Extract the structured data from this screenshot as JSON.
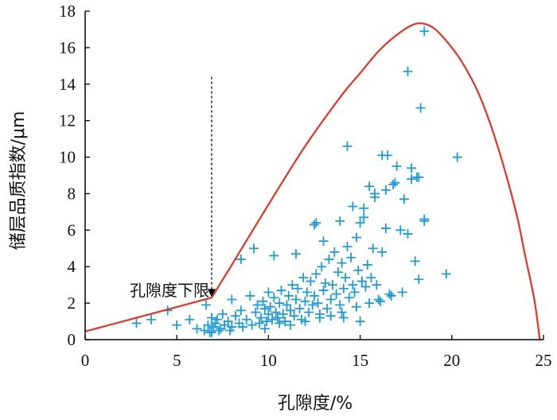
{
  "chart_data": {
    "type": "scatter",
    "xlabel": "孔隙度/%",
    "ylabel": "储层品质指数/μm",
    "xlim": [
      0,
      25
    ],
    "ylim": [
      0,
      18
    ],
    "x_ticks": [
      0,
      5,
      10,
      15,
      20,
      25
    ],
    "y_ticks": [
      0,
      2,
      4,
      6,
      8,
      10,
      12,
      14,
      16,
      18
    ],
    "grid": false,
    "legend": "none",
    "marker": "plus",
    "colors": {
      "points": "#1f9bd7",
      "envelope": "#e53323",
      "axis": "#000000",
      "arrow": "#000000"
    },
    "annotation": {
      "text": "孔隙度下限",
      "x": 6.9,
      "y": 2.3,
      "arrow_from_y": 14.4
    },
    "envelope": {
      "x": [
        0,
        6.9,
        8,
        10,
        12,
        14,
        15,
        16,
        17,
        18,
        18.8,
        19.5,
        20.5,
        21.5,
        22.5,
        23.5,
        24,
        24.5,
        24.8
      ],
      "y": [
        0.45,
        2.3,
        4.1,
        7.4,
        10.6,
        13.4,
        14.6,
        15.8,
        16.7,
        17.3,
        17.2,
        16.6,
        15.3,
        13.4,
        10.6,
        7.0,
        4.6,
        2.2,
        0
      ]
    },
    "points": {
      "x": [
        2.8,
        3.6,
        4.5,
        5.0,
        5.7,
        6.1,
        6.5,
        6.6,
        6.7,
        6.8,
        6.9,
        7.0,
        7.1,
        7.2,
        7.4,
        7.5,
        7.6,
        7.8,
        7.9,
        8.0,
        8.2,
        8.4,
        8.5,
        8.6,
        8.8,
        9.0,
        9.1,
        9.3,
        9.4,
        9.5,
        9.6,
        9.7,
        9.8,
        9.9,
        10.0,
        10.0,
        10.1,
        10.2,
        10.3,
        10.4,
        10.5,
        10.6,
        10.7,
        10.8,
        10.9,
        11.0,
        11.1,
        11.2,
        11.3,
        11.4,
        11.5,
        11.6,
        11.7,
        11.8,
        11.9,
        12.0,
        12.1,
        12.2,
        12.3,
        12.4,
        12.5,
        12.6,
        12.7,
        12.8,
        12.9,
        13.0,
        13.1,
        13.2,
        13.3,
        13.4,
        13.5,
        13.6,
        13.7,
        13.8,
        13.9,
        14.0,
        14.1,
        14.2,
        14.3,
        14.4,
        14.5,
        14.6,
        14.7,
        14.8,
        14.9,
        15.0,
        15.1,
        15.2,
        15.3,
        15.4,
        15.5,
        15.6,
        15.7,
        15.8,
        15.9,
        16.0,
        16.2,
        16.4,
        16.6,
        16.8,
        17.0,
        17.2,
        17.4,
        17.6,
        17.8,
        18.0,
        18.2,
        18.5,
        19.7,
        20.3,
        17.6,
        18.5,
        14.3,
        16.2,
        16.5,
        11.5,
        10.3,
        9.2,
        8.5,
        12.5,
        12.6,
        13.0,
        13.9,
        14.6,
        15.2,
        15.8,
        16.4,
        16.9,
        17.8,
        18.1,
        18.3,
        8.0,
        7.3,
        6.9,
        9.8,
        10.6,
        11.2,
        12.0,
        12.8,
        13.4,
        14.0,
        14.8,
        15.5,
        16.1,
        16.7,
        17.3,
        18.2,
        18.5,
        15.0,
        14.1
      ],
      "y": [
        0.9,
        1.1,
        1.6,
        0.8,
        1.1,
        0.6,
        0.5,
        1.9,
        0.8,
        0.4,
        1.2,
        0.7,
        0.9,
        1.1,
        0.6,
        1.4,
        0.8,
        1.0,
        0.5,
        2.2,
        1.3,
        0.9,
        1.6,
        0.7,
        1.1,
        2.4,
        0.8,
        1.5,
        1.9,
        0.9,
        1.2,
        2.1,
        1.7,
        1.0,
        1.4,
        2.6,
        1.8,
        1.1,
        2.3,
        1.5,
        1.2,
        2.0,
        2.7,
        1.4,
        1.0,
        1.9,
        2.4,
        1.6,
        3.0,
        1.3,
        2.2,
        2.8,
        1.7,
        1.1,
        3.4,
        2.1,
        2.6,
        1.5,
        3.2,
        1.9,
        2.4,
        3.6,
        2.0,
        1.4,
        4.0,
        2.7,
        3.1,
        1.7,
        4.4,
        2.2,
        3.0,
        4.8,
        2.5,
        3.7,
        1.9,
        4.2,
        2.8,
        3.4,
        5.1,
        2.3,
        4.5,
        3.0,
        2.6,
        5.6,
        3.8,
        6.4,
        3.2,
        7.2,
        2.9,
        4.1,
        8.4,
        3.4,
        5.0,
        7.8,
        3.0,
        2.2,
        4.8,
        6.1,
        2.5,
        8.5,
        9.5,
        6.0,
        7.7,
        5.8,
        8.8,
        4.3,
        8.9,
        6.6,
        3.6,
        10.0,
        14.7,
        16.9,
        10.6,
        10.1,
        10.1,
        4.7,
        4.6,
        5.0,
        4.4,
        6.3,
        6.4,
        5.4,
        6.5,
        7.3,
        6.7,
        8.0,
        8.2,
        8.6,
        9.4,
        8.9,
        12.7,
        0.7,
        0.5,
        0.4,
        0.6,
        0.9,
        0.8,
        1.0,
        1.2,
        1.3,
        1.5,
        1.8,
        2.0,
        2.1,
        2.4,
        2.6,
        3.3,
        6.5,
        1.0,
        1.2
      ]
    }
  }
}
